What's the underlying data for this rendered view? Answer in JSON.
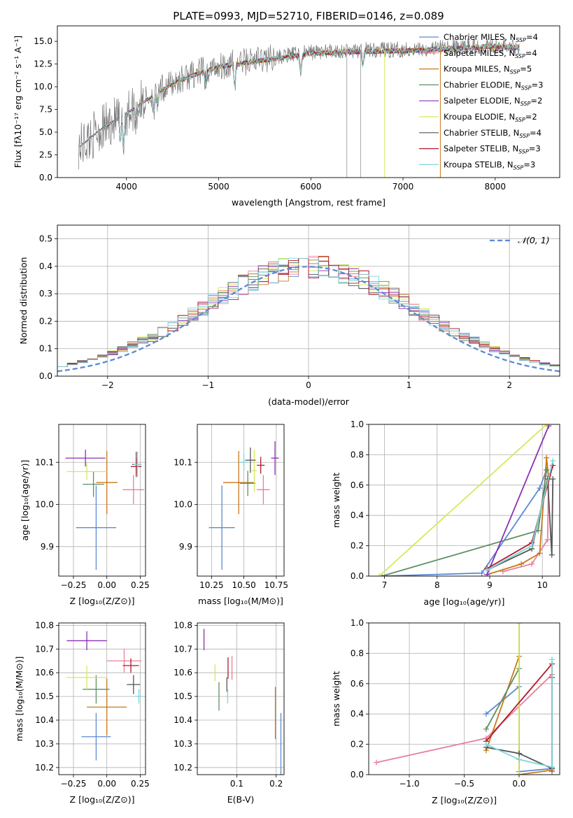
{
  "title": "PLATE=0993, MJD=52710, FIBERID=0146, z=0.089",
  "colors": {
    "Chabrier MILES": "#5b8ad6",
    "Salpeter MILES": "#e8809a",
    "Kroupa MILES": "#c8781a",
    "Chabrier ELODIE": "#5f8f64",
    "Salpeter ELODIE": "#8d2fb5",
    "Kroupa ELODIE": "#d7e85a",
    "Chabrier STELIB": "#555555",
    "Salpeter STELIB": "#b2182b",
    "Kroupa STELIB": "#7fd6dc",
    "data": "#777777"
  },
  "chart_data": [
    {
      "id": "spectrum",
      "type": "line",
      "xlabel": "wavelength [Angstrom, rest frame]",
      "ylabel": "Flux [fλ10⁻¹⁷ erg cm⁻² s⁻¹ A⁻¹]",
      "xlim": [
        3250,
        8700
      ],
      "ylim": [
        0,
        16.7
      ],
      "xticks": [
        "4000",
        "5000",
        "6000",
        "7000",
        "8000"
      ],
      "yticks": [
        "0.0",
        "2.5",
        "5.0",
        "7.5",
        "10.0",
        "12.5",
        "15.0"
      ],
      "legend_position": "right",
      "legend": [
        "Chabrier MILES, N_SSP=4",
        "Salpeter MILES, N_SSP=4",
        "Kroupa MILES, N_SSP=5",
        "Chabrier ELODIE, N_SSP=3",
        "Salpeter ELODIE, N_SSP=2",
        "Kroupa ELODIE, N_SSP=2",
        "Chabrier STELIB, N_SSP=4",
        "Salpeter STELIB, N_SSP=3",
        "Kroupa STELIB, N_SSP=3"
      ],
      "continuum_x": [
        3500,
        3700,
        3900,
        4100,
        4300,
        4500,
        4700,
        5000,
        5300,
        5600,
        6000,
        6500,
        7000,
        7500,
        8000,
        8250
      ],
      "continuum_y": [
        3.5,
        5.2,
        6.5,
        7.8,
        9.2,
        10.4,
        11.3,
        12.3,
        12.8,
        13.2,
        13.8,
        14.0,
        14.1,
        14.3,
        14.6,
        14.4
      ]
    },
    {
      "id": "residuals",
      "type": "bar",
      "xlabel": "(data-model)/error",
      "ylabel": "Normed distribution",
      "xlim": [
        -2.5,
        2.5
      ],
      "ylim": [
        0,
        0.55
      ],
      "xticks": [
        "−2",
        "−1",
        "0",
        "1",
        "2"
      ],
      "yticks": [
        "0.0",
        "0.1",
        "0.2",
        "0.3",
        "0.4",
        "0.5"
      ],
      "reference_label": "𝒩(0, 1)",
      "legend_position": "top-right",
      "grid": true
    },
    {
      "id": "age-vs-z",
      "type": "scatter",
      "xlabel": "Z [log₁₀(Z/Z⊙)]",
      "ylabel": "age  [log₁₀(age/yr)]",
      "xlim": [
        -0.36,
        0.29
      ],
      "ylim": [
        9.83,
        10.19
      ],
      "xticks": [
        "−0.25",
        "0.00",
        "0.25"
      ],
      "yticks": [
        "9.9",
        "10.0",
        "10.1"
      ],
      "grid": true,
      "points": [
        {
          "model": "Chabrier MILES",
          "x": -0.08,
          "y": 9.945,
          "xerr": 0.15,
          "yerr": 0.1
        },
        {
          "model": "Salpeter MILES",
          "x": 0.2,
          "y": 10.035,
          "xerr": 0.08,
          "yerr": 0.035
        },
        {
          "model": "Kroupa MILES",
          "x": 0.0,
          "y": 10.052,
          "xerr": 0.08,
          "yerr": 0.075
        },
        {
          "model": "Chabrier ELODIE",
          "x": -0.1,
          "y": 10.048,
          "xerr": 0.08,
          "yerr": 0.03
        },
        {
          "model": "Salpeter ELODIE",
          "x": -0.16,
          "y": 10.11,
          "xerr": 0.15,
          "yerr": 0.02
        },
        {
          "model": "Kroupa ELODIE",
          "x": -0.15,
          "y": 10.078,
          "xerr": 0.15,
          "yerr": 0.02
        },
        {
          "model": "Chabrier STELIB",
          "x": 0.22,
          "y": 10.095,
          "xerr": 0.03,
          "yerr": 0.03
        },
        {
          "model": "Salpeter STELIB",
          "x": 0.22,
          "y": 10.09,
          "xerr": 0.04,
          "yerr": 0.02
        },
        {
          "model": "Kroupa STELIB",
          "x": 0.23,
          "y": 10.095,
          "xerr": 0.03,
          "yerr": 0.03
        }
      ]
    },
    {
      "id": "age-vs-mass",
      "type": "scatter",
      "xlabel": "mass [log₁₀(M/M⊙)]",
      "ylabel": "",
      "xlim": [
        10.14,
        10.81
      ],
      "ylim": [
        9.83,
        10.19
      ],
      "xticks": [
        "10.25",
        "10.50",
        "10.75"
      ],
      "yticks": [
        "9.9",
        "10.0",
        "10.1"
      ],
      "grid": true,
      "points": [
        {
          "model": "Chabrier MILES",
          "x": 10.33,
          "y": 9.945,
          "xerr": 0.1,
          "yerr": 0.1
        },
        {
          "model": "Salpeter MILES",
          "x": 10.65,
          "y": 10.035,
          "xerr": 0.05,
          "yerr": 0.035
        },
        {
          "model": "Kroupa MILES",
          "x": 10.46,
          "y": 10.052,
          "xerr": 0.12,
          "yerr": 0.075
        },
        {
          "model": "Chabrier ELODIE",
          "x": 10.53,
          "y": 10.05,
          "xerr": 0.06,
          "yerr": 0.03
        },
        {
          "model": "Salpeter ELODIE",
          "x": 10.74,
          "y": 10.11,
          "xerr": 0.03,
          "yerr": 0.04
        },
        {
          "model": "Kroupa ELODIE",
          "x": 10.58,
          "y": 10.08,
          "xerr": 0.02,
          "yerr": 0.05
        },
        {
          "model": "Chabrier STELIB",
          "x": 10.55,
          "y": 10.105,
          "xerr": 0.04,
          "yerr": 0.03
        },
        {
          "model": "Salpeter STELIB",
          "x": 10.63,
          "y": 10.093,
          "xerr": 0.03,
          "yerr": 0.02
        },
        {
          "model": "Kroupa STELIB",
          "x": 10.5,
          "y": 10.1,
          "xerr": 0.03,
          "yerr": 0.02
        }
      ]
    },
    {
      "id": "massweight-vs-age",
      "type": "line",
      "xlabel": "age  [log₁₀(age/yr)]",
      "ylabel": "mass weight",
      "xlim": [
        6.7,
        10.33
      ],
      "ylim": [
        0,
        1
      ],
      "xticks": [
        "7",
        "8",
        "9",
        "10"
      ],
      "yticks": [
        "0.0",
        "0.2",
        "0.4",
        "0.6",
        "0.8",
        "1.0"
      ],
      "grid": true,
      "series": [
        {
          "model": "Chabrier MILES",
          "x": [
            6.95,
            8.85,
            9.95,
            10.08
          ],
          "y": [
            0.0,
            0.02,
            0.58,
            0.7
          ]
        },
        {
          "model": "Salpeter MILES",
          "x": [
            9.25,
            9.8,
            10.1,
            10.12
          ],
          "y": [
            0.03,
            0.08,
            0.24,
            0.66
          ]
        },
        {
          "model": "Kroupa MILES",
          "x": [
            8.95,
            9.6,
            9.95,
            10.08,
            10.12
          ],
          "y": [
            0.01,
            0.08,
            0.15,
            0.78,
            0.64
          ]
        },
        {
          "model": "Chabrier ELODIE",
          "x": [
            6.95,
            9.92,
            10.08
          ],
          "y": [
            0.0,
            0.3,
            0.7
          ]
        },
        {
          "model": "Salpeter ELODIE",
          "x": [
            8.95,
            10.12
          ],
          "y": [
            0.01,
            0.99
          ]
        },
        {
          "model": "Kroupa ELODIE",
          "x": [
            6.9,
            10.08
          ],
          "y": [
            0.0,
            1.0
          ]
        },
        {
          "model": "Chabrier STELIB",
          "x": [
            8.95,
            9.8,
            10.1,
            10.18,
            10.2
          ],
          "y": [
            0.04,
            0.18,
            0.64,
            0.14,
            0.64
          ]
        },
        {
          "model": "Salpeter STELIB",
          "x": [
            8.95,
            9.8,
            10.2
          ],
          "y": [
            0.05,
            0.22,
            0.73
          ]
        },
        {
          "model": "Kroupa STELIB",
          "x": [
            8.95,
            9.8,
            10.2
          ],
          "y": [
            0.04,
            0.2,
            0.76
          ]
        }
      ]
    },
    {
      "id": "mass-vs-z",
      "type": "scatter",
      "xlabel": "Z [log₁₀(Z/Z⊙)]",
      "ylabel": "mass [log₁₀(M/M⊙)]",
      "xlim": [
        -0.36,
        0.29
      ],
      "ylim": [
        10.17,
        10.81
      ],
      "xticks": [
        "−0.25",
        "0.00",
        "0.25"
      ],
      "yticks": [
        "10.2",
        "10.3",
        "10.4",
        "10.5",
        "10.6",
        "10.7",
        "10.8"
      ],
      "grid": true,
      "points": [
        {
          "model": "Chabrier MILES",
          "x": -0.08,
          "y": 10.33,
          "xerr": 0.11,
          "yerr": 0.1
        },
        {
          "model": "Salpeter MILES",
          "x": 0.13,
          "y": 10.65,
          "xerr": 0.13,
          "yerr": 0.05
        },
        {
          "model": "Kroupa MILES",
          "x": 0.0,
          "y": 10.455,
          "xerr": 0.15,
          "yerr": 0.12
        },
        {
          "model": "Chabrier ELODIE",
          "x": -0.08,
          "y": 10.53,
          "xerr": 0.1,
          "yerr": 0.06
        },
        {
          "model": "Salpeter ELODIE",
          "x": -0.15,
          "y": 10.735,
          "xerr": 0.15,
          "yerr": 0.04
        },
        {
          "model": "Kroupa ELODIE",
          "x": -0.15,
          "y": 10.58,
          "xerr": 0.15,
          "yerr": 0.05
        },
        {
          "model": "Chabrier STELIB",
          "x": 0.2,
          "y": 10.55,
          "xerr": 0.05,
          "yerr": 0.04
        },
        {
          "model": "Salpeter STELIB",
          "x": 0.18,
          "y": 10.63,
          "xerr": 0.06,
          "yerr": 0.03
        },
        {
          "model": "Kroupa STELIB",
          "x": 0.24,
          "y": 10.5,
          "xerr": 0.03,
          "yerr": 0.03
        }
      ]
    },
    {
      "id": "mass-vs-ebv",
      "type": "scatter",
      "xlabel": "E(B-V)",
      "ylabel": "",
      "xlim": [
        0.0,
        0.22
      ],
      "ylim": [
        10.17,
        10.81
      ],
      "xticks": [
        "0.1",
        "0.2"
      ],
      "yticks": [
        "10.2",
        "10.3",
        "10.4",
        "10.5",
        "10.6",
        "10.7",
        "10.8"
      ],
      "grid": true,
      "points": [
        {
          "model": "Chabrier MILES",
          "x": 0.212,
          "y": 10.3,
          "yerr": 0.13
        },
        {
          "model": "Salpeter MILES",
          "x": 0.088,
          "y": 10.62,
          "yerr": 0.05
        },
        {
          "model": "Kroupa MILES",
          "x": 0.198,
          "y": 10.43,
          "yerr": 0.11
        },
        {
          "model": "Chabrier ELODIE",
          "x": 0.055,
          "y": 10.5,
          "yerr": 0.06
        },
        {
          "model": "Salpeter ELODIE",
          "x": 0.017,
          "y": 10.74,
          "yerr": 0.045
        },
        {
          "model": "Kroupa ELODIE",
          "x": 0.045,
          "y": 10.6,
          "yerr": 0.035
        },
        {
          "model": "Chabrier STELIB",
          "x": 0.075,
          "y": 10.55,
          "yerr": 0.03
        },
        {
          "model": "Salpeter STELIB",
          "x": 0.078,
          "y": 10.62,
          "yerr": 0.045
        },
        {
          "model": "Kroupa STELIB",
          "x": 0.077,
          "y": 10.5,
          "yerr": 0.03
        }
      ]
    },
    {
      "id": "massweight-vs-z",
      "type": "line",
      "xlabel": "Z [log₁₀(Z/Z⊙)]",
      "ylabel": "mass weight",
      "xlim": [
        -1.37,
        0.37
      ],
      "ylim": [
        0,
        1
      ],
      "xticks": [
        "−1.0",
        "−0.5",
        "0.0"
      ],
      "yticks": [
        "0.0",
        "0.2",
        "0.4",
        "0.6",
        "0.8",
        "1.0"
      ],
      "grid": true,
      "series": [
        {
          "model": "Chabrier MILES",
          "x": [
            -0.3,
            0.0,
            0.0,
            0.3,
            0.3
          ],
          "y": [
            0.4,
            0.58,
            0.02,
            0.04,
            0.02
          ]
        },
        {
          "model": "Salpeter MILES",
          "x": [
            -1.3,
            -0.3,
            0.3,
            0.3
          ],
          "y": [
            0.08,
            0.24,
            0.66,
            0.66
          ]
        },
        {
          "model": "Kroupa MILES",
          "x": [
            -0.3,
            0.0,
            0.0,
            0.3
          ],
          "y": [
            0.16,
            0.78,
            0.0,
            0.03
          ]
        },
        {
          "model": "Chabrier ELODIE",
          "x": [
            -0.3,
            0.0,
            0.0
          ],
          "y": [
            0.3,
            0.7,
            0.0
          ]
        },
        {
          "model": "Salpeter ELODIE",
          "x": [
            0.0,
            0.0,
            0.0
          ],
          "y": [
            0.0,
            1.0,
            0.0
          ]
        },
        {
          "model": "Kroupa ELODIE",
          "x": [
            0.0,
            0.0
          ],
          "y": [
            0.0,
            1.0
          ]
        },
        {
          "model": "Chabrier STELIB",
          "x": [
            -0.3,
            0.0,
            0.3,
            0.3
          ],
          "y": [
            0.18,
            0.14,
            0.04,
            0.64
          ]
        },
        {
          "model": "Salpeter STELIB",
          "x": [
            -0.3,
            0.3,
            0.3
          ],
          "y": [
            0.22,
            0.73,
            0.05
          ]
        },
        {
          "model": "Kroupa STELIB",
          "x": [
            -0.3,
            0.0,
            0.3,
            0.3
          ],
          "y": [
            0.2,
            0.1,
            0.05,
            0.76
          ]
        }
      ]
    }
  ]
}
